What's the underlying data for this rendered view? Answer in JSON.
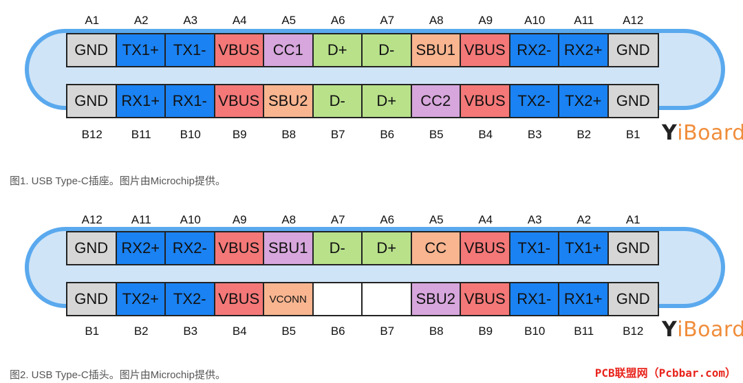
{
  "colors": {
    "GND": "#d6d6d6",
    "TX": "#1a82f2",
    "RX": "#1a82f2",
    "VBUS": "#f47878",
    "CC": "#d6a6dc",
    "D": "#b8e18a",
    "SBU1_plug": "#d6a6dc",
    "SBU": "#f8b590",
    "VCONN": "#f8b590",
    "EMPTY": "#ffffff"
  },
  "fig1": {
    "top_labels": [
      "A1",
      "A2",
      "A3",
      "A4",
      "A5",
      "A6",
      "A7",
      "A8",
      "A9",
      "A10",
      "A11",
      "A12"
    ],
    "top_pins": [
      {
        "t": "GND",
        "c": "#d6d6d6"
      },
      {
        "t": "TX1+",
        "c": "#1a82f2"
      },
      {
        "t": "TX1-",
        "c": "#1a82f2"
      },
      {
        "t": "VBUS",
        "c": "#f47878"
      },
      {
        "t": "CC1",
        "c": "#d6a6dc"
      },
      {
        "t": "D+",
        "c": "#b8e18a"
      },
      {
        "t": "D-",
        "c": "#b8e18a"
      },
      {
        "t": "SBU1",
        "c": "#f8b590"
      },
      {
        "t": "VBUS",
        "c": "#f47878"
      },
      {
        "t": "RX2-",
        "c": "#1a82f2"
      },
      {
        "t": "RX2+",
        "c": "#1a82f2"
      },
      {
        "t": "GND",
        "c": "#d6d6d6"
      }
    ],
    "bot_pins": [
      {
        "t": "GND",
        "c": "#d6d6d6"
      },
      {
        "t": "RX1+",
        "c": "#1a82f2"
      },
      {
        "t": "RX1-",
        "c": "#1a82f2"
      },
      {
        "t": "VBUS",
        "c": "#f47878"
      },
      {
        "t": "SBU2",
        "c": "#f8b590"
      },
      {
        "t": "D-",
        "c": "#b8e18a"
      },
      {
        "t": "D+",
        "c": "#b8e18a"
      },
      {
        "t": "CC2",
        "c": "#d6a6dc"
      },
      {
        "t": "VBUS",
        "c": "#f47878"
      },
      {
        "t": "TX2-",
        "c": "#1a82f2"
      },
      {
        "t": "TX2+",
        "c": "#1a82f2"
      },
      {
        "t": "GND",
        "c": "#d6d6d6"
      }
    ],
    "bot_labels": [
      "B12",
      "B11",
      "B10",
      "B9",
      "B8",
      "B7",
      "B6",
      "B5",
      "B4",
      "B3",
      "B2",
      "B1"
    ],
    "caption": "图1. USB Type-C插座。图片由Microchip提供。"
  },
  "fig2": {
    "top_labels": [
      "A12",
      "A11",
      "A10",
      "A9",
      "A8",
      "A7",
      "A6",
      "A5",
      "A4",
      "A3",
      "A2",
      "A1"
    ],
    "top_pins": [
      {
        "t": "GND",
        "c": "#d6d6d6"
      },
      {
        "t": "RX2+",
        "c": "#1a82f2"
      },
      {
        "t": "RX2-",
        "c": "#1a82f2"
      },
      {
        "t": "VBUS",
        "c": "#f47878"
      },
      {
        "t": "SBU1",
        "c": "#d6a6dc"
      },
      {
        "t": "D-",
        "c": "#b8e18a"
      },
      {
        "t": "D+",
        "c": "#b8e18a"
      },
      {
        "t": "CC",
        "c": "#f8b590"
      },
      {
        "t": "VBUS",
        "c": "#f47878"
      },
      {
        "t": "TX1-",
        "c": "#1a82f2"
      },
      {
        "t": "TX1+",
        "c": "#1a82f2"
      },
      {
        "t": "GND",
        "c": "#d6d6d6"
      }
    ],
    "bot_pins": [
      {
        "t": "GND",
        "c": "#d6d6d6"
      },
      {
        "t": "TX2+",
        "c": "#1a82f2"
      },
      {
        "t": "TX2-",
        "c": "#1a82f2"
      },
      {
        "t": "VBUS",
        "c": "#f47878"
      },
      {
        "t": "VCONN",
        "c": "#f8b590",
        "small": true
      },
      {
        "t": "",
        "c": "#ffffff"
      },
      {
        "t": "",
        "c": "#ffffff"
      },
      {
        "t": "SBU2",
        "c": "#d6a6dc"
      },
      {
        "t": "VBUS",
        "c": "#f47878"
      },
      {
        "t": "RX1-",
        "c": "#1a82f2"
      },
      {
        "t": "RX1+",
        "c": "#1a82f2"
      },
      {
        "t": "GND",
        "c": "#d6d6d6"
      }
    ],
    "bot_labels": [
      "B1",
      "B2",
      "B3",
      "B4",
      "B5",
      "B6",
      "B7",
      "B8",
      "B9",
      "B10",
      "B11",
      "B12"
    ],
    "caption": "图2. USB Type-C插头。图片由Microchip提供。"
  },
  "logo": {
    "y": "Y",
    "rest": "iBoard"
  },
  "watermark": "PCB联盟网（Pcbbar.com）"
}
